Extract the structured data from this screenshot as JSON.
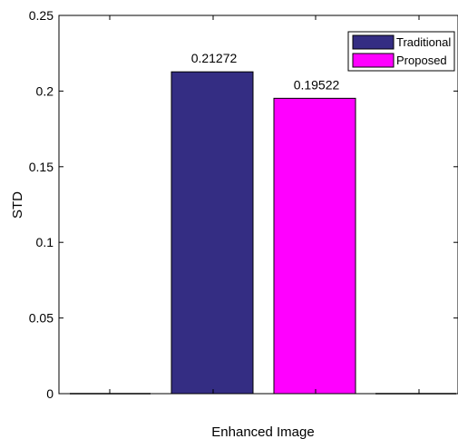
{
  "chart_data": {
    "type": "bar",
    "title": "",
    "xlabel": "Enhanced Image",
    "ylabel": "STD",
    "ylim": [
      0,
      0.25
    ],
    "yticks": [
      0,
      0.05,
      0.1,
      0.15,
      0.2,
      0.25
    ],
    "ytick_labels": [
      "0",
      "0.05",
      "0.1",
      "0.15",
      "0.2",
      "0.25"
    ],
    "grid": false,
    "legend_position": "top-right",
    "series": [
      {
        "name": "Traditional",
        "value": 0.21272,
        "label": "0.21272",
        "color": "#342d83"
      },
      {
        "name": "Proposed",
        "value": 0.19522,
        "label": "0.19522",
        "color": "#ff00ff"
      }
    ]
  }
}
